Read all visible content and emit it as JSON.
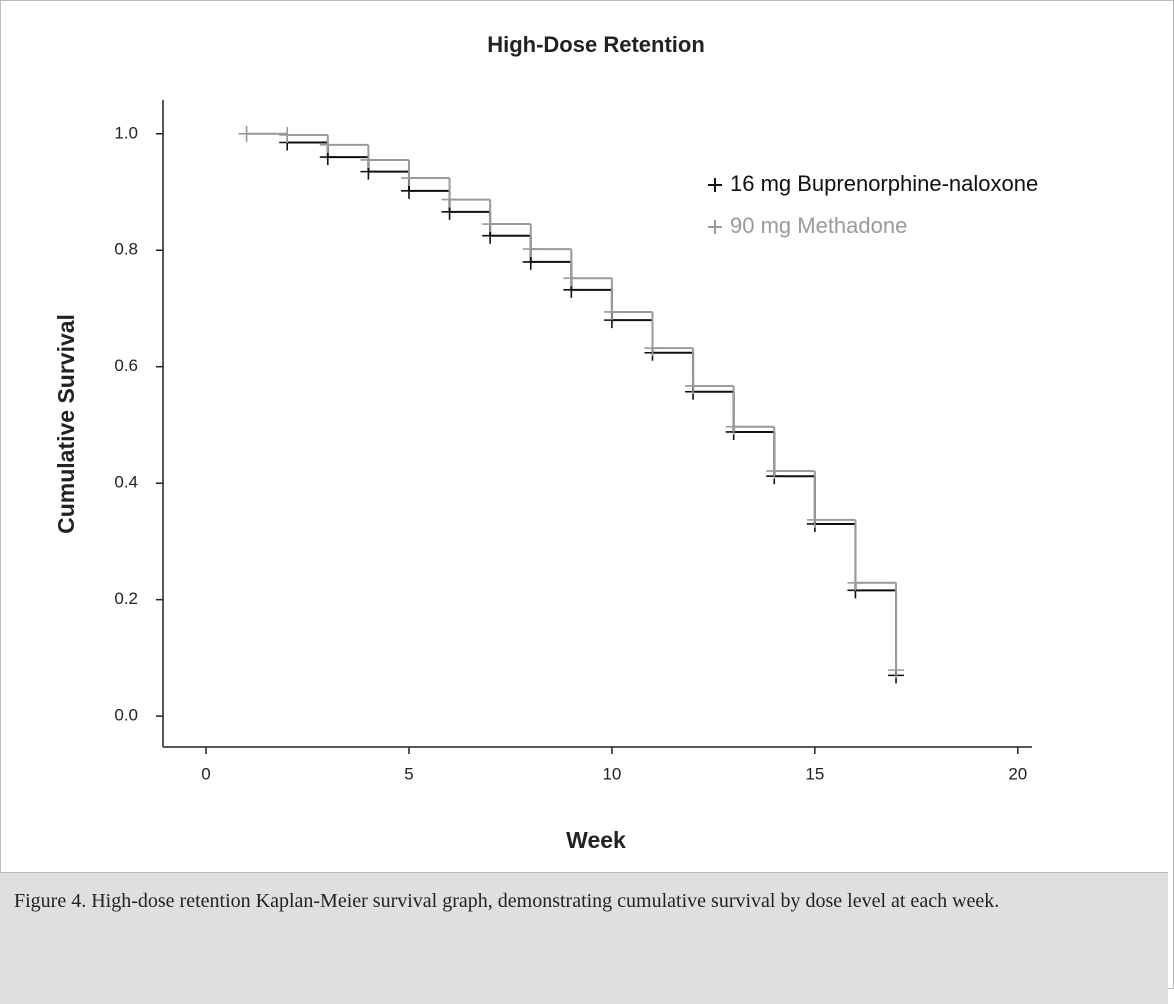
{
  "chart_data": {
    "type": "step",
    "title": "High-Dose Retention",
    "x_label": "Week",
    "y_label": "Cumulative Survival",
    "x": [
      1,
      2,
      3,
      4,
      5,
      6,
      7,
      8,
      9,
      10,
      11,
      12,
      13,
      14,
      15,
      16,
      17
    ],
    "series": [
      {
        "name": "16 mg Buprenorphine-naloxone",
        "color": "#111111",
        "values": [
          null,
          0.985,
          0.96,
          0.935,
          0.902,
          0.866,
          0.825,
          0.78,
          0.732,
          0.68,
          0.624,
          0.557,
          0.488,
          0.412,
          0.33,
          0.216,
          0.07
        ]
      },
      {
        "name": "90 mg Methadone",
        "color": "#9a9a9a",
        "values": [
          1.0,
          0.998,
          0.981,
          0.955,
          0.924,
          0.887,
          0.845,
          0.802,
          0.752,
          0.694,
          0.632,
          0.567,
          0.497,
          0.421,
          0.337,
          0.229,
          0.079
        ]
      }
    ],
    "xlim": [
      -1.06,
      20.35
    ],
    "xticks": [
      0,
      5,
      10,
      15,
      20
    ],
    "ylim": [
      -0.053,
      1.058
    ],
    "yticks": [
      {
        "value": 0,
        "label": "0.0"
      },
      0.2,
      0.4,
      0.6,
      0.8,
      {
        "value": 1,
        "label": "1.0"
      }
    ],
    "legend": "upper right",
    "grid": false
  },
  "caption": "Figure 4. High-dose retention Kaplan-Meier survival graph, demonstrating cumulative survival by dose level at each week."
}
